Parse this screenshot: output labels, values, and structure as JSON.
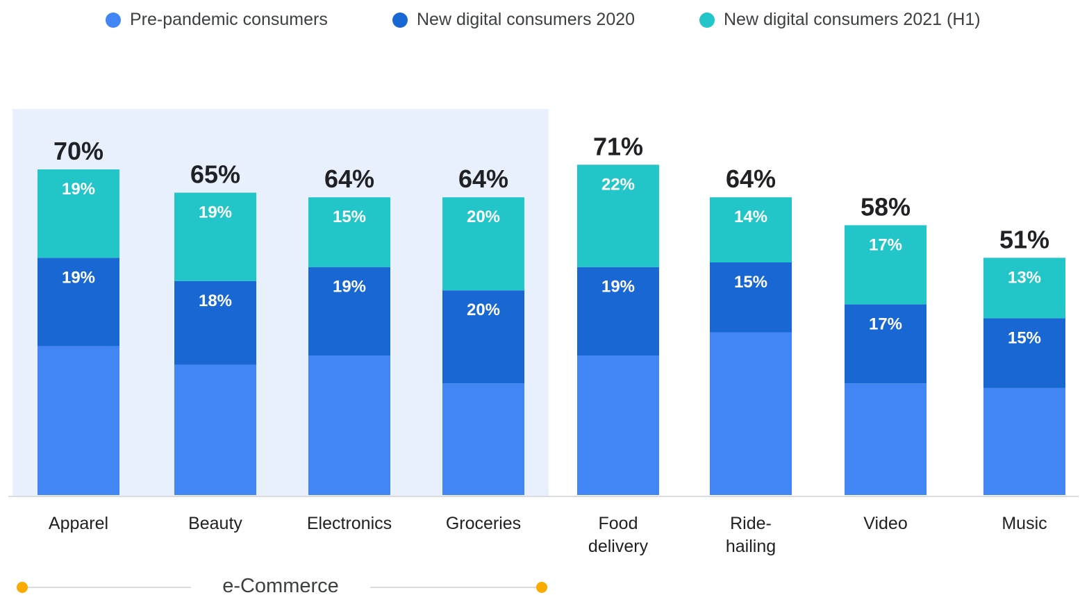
{
  "colors": {
    "pre": "#4285f4",
    "new2020": "#1967d2",
    "new2021": "#22c5c8",
    "highlight": "#e8f0fe",
    "axis": "#dadce0",
    "group_dot": "#f9ab00"
  },
  "legend": [
    {
      "key": "pre",
      "label": "Pre-pandemic consumers"
    },
    {
      "key": "new2020",
      "label": "New digital consumers 2020"
    },
    {
      "key": "new2021",
      "label": "New digital consumers 2021 (H1)"
    }
  ],
  "group_label": "e-Commerce",
  "chart_data": {
    "type": "bar",
    "stacked": true,
    "categories": [
      "Apparel",
      "Beauty",
      "Electronics",
      "Groceries",
      "Food delivery",
      "Ride-hailing",
      "Video",
      "Music"
    ],
    "category_lines": [
      [
        "Apparel"
      ],
      [
        "Beauty"
      ],
      [
        "Electronics"
      ],
      [
        "Groceries"
      ],
      [
        "Food",
        "delivery"
      ],
      [
        "Ride-",
        "hailing"
      ],
      [
        "Video"
      ],
      [
        "Music"
      ]
    ],
    "totals": [
      70,
      65,
      64,
      64,
      71,
      64,
      58,
      51
    ],
    "total_labels": [
      "70%",
      "65%",
      "64%",
      "64%",
      "71%",
      "64%",
      "58%",
      "51%"
    ],
    "series": [
      {
        "name": "Pre-pandemic consumers",
        "values": [
          32,
          28,
          30,
          24,
          30,
          35,
          24,
          23
        ],
        "labels": [
          "",
          "",
          "",
          "",
          "",
          "",
          "",
          ""
        ]
      },
      {
        "name": "New digital consumers 2020",
        "values": [
          19,
          18,
          19,
          20,
          19,
          15,
          17,
          15
        ],
        "labels": [
          "19%",
          "18%",
          "19%",
          "20%",
          "19%",
          "15%",
          "17%",
          "15%"
        ]
      },
      {
        "name": "New digital consumers 2021 (H1)",
        "values": [
          19,
          19,
          15,
          20,
          22,
          14,
          17,
          13
        ],
        "labels": [
          "19%",
          "19%",
          "15%",
          "20%",
          "22%",
          "14%",
          "17%",
          "13%"
        ]
      }
    ],
    "highlighted_categories": [
      "Apparel",
      "Beauty",
      "Electronics",
      "Groceries"
    ],
    "ylim": [
      0,
      75
    ],
    "grid": false,
    "legend_position": "top"
  }
}
